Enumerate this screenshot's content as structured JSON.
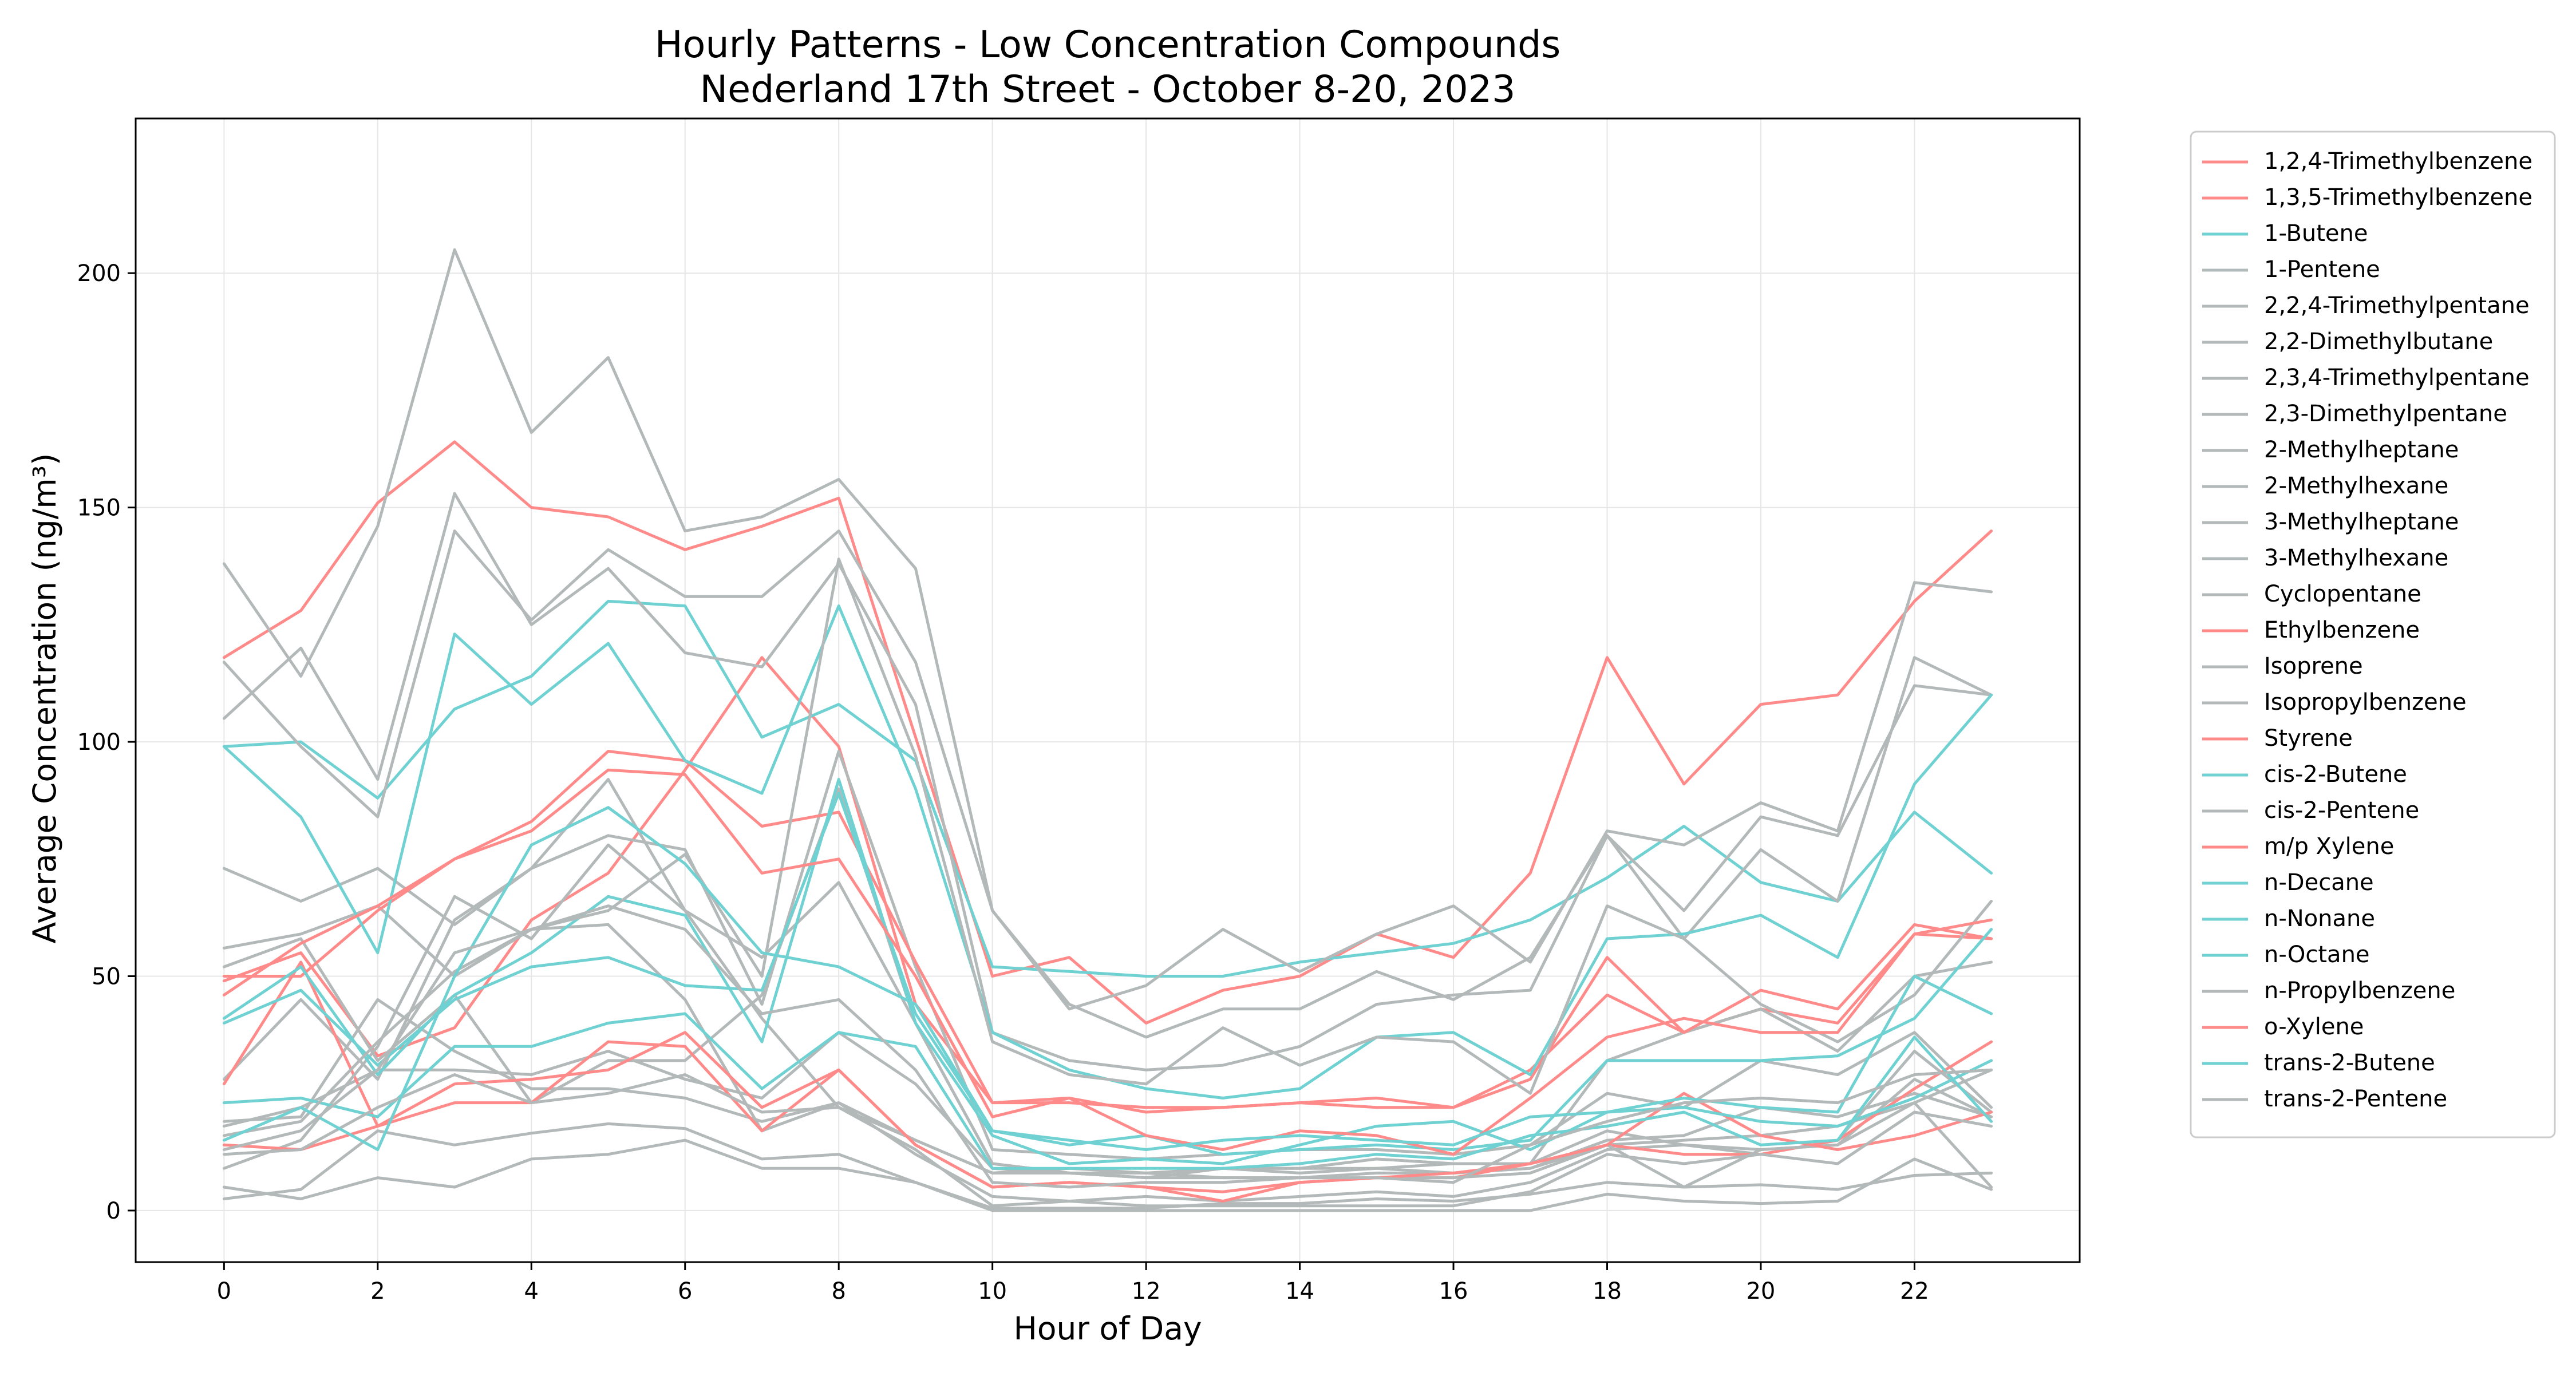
{
  "chart_data": {
    "type": "line",
    "title": "Hourly Patterns - Low Concentration Compounds",
    "subtitle": "Nederland 17th Street - October 8-20, 2023",
    "xlabel": "Hour of Day",
    "ylabel": "Average Concentration (ng/m³)",
    "xlim": [
      -1.15,
      24.15
    ],
    "ylim": [
      -11,
      233
    ],
    "x_ticks": [
      0,
      2,
      4,
      6,
      8,
      10,
      12,
      14,
      16,
      18,
      20,
      22
    ],
    "y_ticks": [
      0,
      50,
      100,
      150,
      200
    ],
    "grid": true,
    "legend_position": "outside-right",
    "x": [
      0,
      1,
      2,
      3,
      4,
      5,
      6,
      7,
      8,
      9,
      10,
      11,
      12,
      13,
      14,
      15,
      16,
      17,
      18,
      19,
      20,
      21,
      22,
      23
    ],
    "series": [
      {
        "name": "1,2,4-Trimethylbenzene",
        "color": "#ff8a8a",
        "values": [
          118,
          128,
          151,
          164,
          150,
          148,
          141,
          146,
          152,
          101,
          50,
          54,
          40,
          47,
          50,
          59,
          54,
          72,
          118,
          91,
          108,
          110,
          130,
          145
        ]
      },
      {
        "name": "1,3,5-Trimethylbenzene",
        "color": "#ff8a8a",
        "values": [
          49,
          55,
          33,
          39,
          62,
          72,
          94,
          118,
          99,
          44,
          23,
          24,
          21,
          22,
          23,
          24,
          22,
          28,
          54,
          38,
          43,
          40,
          59,
          58
        ]
      },
      {
        "name": "1-Butene",
        "color": "#6fd1d1",
        "values": [
          99,
          100,
          88,
          107,
          114,
          130,
          129,
          101,
          108,
          96,
          52,
          51,
          50,
          50,
          53,
          55,
          57,
          62,
          71,
          82,
          70,
          66,
          85,
          72
        ]
      },
      {
        "name": "1-Pentene",
        "color": "#b3b9b9",
        "values": [
          138,
          114,
          146,
          205,
          166,
          182,
          145,
          148,
          156,
          137,
          64,
          43,
          48,
          60,
          51,
          59,
          65,
          53,
          81,
          78,
          87,
          81,
          134,
          132
        ]
      },
      {
        "name": "2,2,4-Trimethylpentane",
        "color": "#b3b9b9",
        "values": [
          73,
          66,
          73,
          61,
          73,
          92,
          64,
          54,
          70,
          40,
          10,
          8,
          7,
          9,
          9,
          9,
          10,
          10,
          32,
          38,
          43,
          34,
          50,
          53
        ]
      },
      {
        "name": "2,2-Dimethylbutane",
        "color": "#b3b9b9",
        "values": [
          105,
          120,
          92,
          153,
          125,
          137,
          119,
          116,
          138,
          108,
          38,
          32,
          30,
          31,
          35,
          44,
          46,
          47,
          80,
          58,
          77,
          66,
          118,
          110
        ]
      },
      {
        "name": "2,3,4-Trimethylpentane",
        "color": "#b3b9b9",
        "values": [
          52,
          58,
          32,
          46,
          23,
          32,
          32,
          46,
          90,
          40,
          10,
          8,
          8,
          9,
          9,
          11,
          10,
          10,
          17,
          14,
          12,
          15,
          34,
          21
        ]
      },
      {
        "name": "2,3-Dimethylpentane",
        "color": "#b3b9b9",
        "values": [
          28,
          45,
          28,
          62,
          73,
          80,
          77,
          44,
          98,
          52,
          13,
          12,
          11,
          12,
          13,
          13,
          12,
          14,
          25,
          22,
          32,
          29,
          38,
          22
        ]
      },
      {
        "name": "2-Methylheptane",
        "color": "#b3b9b9",
        "values": [
          18,
          22,
          30,
          30,
          29,
          34,
          28,
          24,
          38,
          27,
          9,
          8,
          7,
          9,
          8,
          9,
          8,
          9,
          15,
          16,
          22,
          20,
          25,
          20
        ]
      },
      {
        "name": "2-Methylhexane",
        "color": "#b3b9b9",
        "values": [
          56,
          59,
          65,
          50,
          60,
          61,
          45,
          17,
          23,
          12,
          3,
          2,
          3,
          2,
          3,
          4,
          3,
          6,
          13,
          14,
          13,
          14,
          28,
          20
        ]
      },
      {
        "name": "3-Methylheptane",
        "color": "#b3b9b9",
        "values": [
          19,
          20,
          45,
          34,
          26,
          26,
          24,
          19,
          23,
          15,
          8,
          8,
          7,
          7,
          7,
          8,
          8,
          9,
          14,
          15,
          16,
          18,
          23,
          30
        ]
      },
      {
        "name": "3-Methylhexane",
        "color": "#b3b9b9",
        "values": [
          117,
          99,
          84,
          145,
          126,
          141,
          131,
          131,
          145,
          117,
          64,
          44,
          37,
          43,
          43,
          51,
          45,
          54,
          80,
          64,
          84,
          80,
          112,
          110
        ]
      },
      {
        "name": "Cyclopentane",
        "color": "#b3b9b9",
        "values": [
          5,
          2.5,
          7,
          5,
          11,
          12,
          15,
          9,
          9,
          6,
          0.5,
          0.5,
          0.5,
          1.5,
          1.5,
          2.5,
          2,
          3.5,
          6,
          5,
          5.5,
          4.5,
          7.5,
          8
        ]
      },
      {
        "name": "Ethylbenzene",
        "color": "#ff8a8a",
        "values": [
          27,
          53,
          18,
          23,
          23,
          36,
          35,
          17,
          30,
          14,
          5,
          6,
          5,
          4,
          6,
          7,
          7,
          10,
          14,
          12,
          12,
          15,
          26,
          36
        ]
      },
      {
        "name": "Isoprene",
        "color": "#b3b9b9",
        "values": [
          9,
          15,
          35,
          67,
          58,
          78,
          64,
          41,
          22,
          15,
          8,
          9,
          8,
          7,
          7,
          7,
          7,
          8,
          14,
          5,
          13,
          14,
          23,
          5
        ]
      },
      {
        "name": "Isopropylbenzene",
        "color": "#b3b9b9",
        "values": [
          2.5,
          4.5,
          17,
          14,
          16.5,
          18.5,
          17.5,
          11,
          12,
          6,
          0,
          0,
          0,
          0,
          0,
          0,
          0,
          0,
          3.5,
          2,
          1.5,
          2,
          11,
          4.5
        ]
      },
      {
        "name": "Styrene",
        "color": "#ff8a8a",
        "values": [
          14,
          13,
          18,
          27,
          28,
          30,
          38,
          22,
          30,
          14,
          5,
          6,
          5,
          2,
          6,
          7,
          8,
          10,
          14,
          25,
          16,
          13,
          16,
          21
        ]
      },
      {
        "name": "cis-2-Butene",
        "color": "#6fd1d1",
        "values": [
          23,
          24,
          20,
          35,
          35,
          40,
          42,
          26,
          38,
          35,
          9,
          9,
          9,
          9,
          10,
          12,
          11,
          16,
          18,
          21,
          14,
          15,
          37,
          19
        ]
      },
      {
        "name": "cis-2-Pentene",
        "color": "#b3b9b9",
        "values": [
          12,
          13,
          22,
          29,
          23,
          25,
          29,
          21,
          22,
          13,
          1,
          2,
          1,
          1,
          1,
          1,
          1,
          4,
          12,
          10,
          12,
          10,
          21,
          18
        ]
      },
      {
        "name": "m/p Xylene",
        "color": "#ff8a8a",
        "values": [
          50,
          50,
          64,
          75,
          83,
          98,
          96,
          82,
          85,
          53,
          23,
          23,
          22,
          22,
          23,
          22,
          22,
          30,
          46,
          38,
          47,
          43,
          61,
          58
        ]
      },
      {
        "name": "n-Decane",
        "color": "#6fd1d1",
        "values": [
          99,
          84,
          55,
          123,
          108,
          121,
          96,
          89,
          129,
          90,
          38,
          30,
          26,
          24,
          26,
          37,
          38,
          29,
          58,
          59,
          63,
          54,
          91,
          110
        ]
      },
      {
        "name": "n-Nonane",
        "color": "#6fd1d1",
        "values": [
          41,
          52,
          29,
          46,
          55,
          67,
          63,
          36,
          92,
          40,
          16,
          10,
          11,
          10,
          14,
          18,
          19,
          13,
          21,
          22,
          19,
          18,
          24,
          32
        ]
      },
      {
        "name": "n-Octane",
        "color": "#6fd1d1",
        "values": [
          40,
          47,
          31,
          45,
          52,
          54,
          48,
          47,
          89,
          42,
          17,
          14,
          16,
          12,
          13,
          14,
          13,
          15,
          32,
          32,
          32,
          33,
          41,
          60
        ]
      },
      {
        "name": "n-Propylbenzene",
        "color": "#b3b9b9",
        "values": [
          16,
          19,
          36,
          51,
          60,
          64,
          76,
          50,
          139,
          97,
          36,
          29,
          27,
          39,
          31,
          37,
          36,
          25,
          65,
          58,
          44,
          36,
          46,
          66
        ]
      },
      {
        "name": "o-Xylene",
        "color": "#ff8a8a",
        "values": [
          46,
          57,
          65,
          75,
          81,
          94,
          93,
          72,
          75,
          50,
          20,
          24,
          16,
          13,
          17,
          16,
          12,
          24,
          37,
          41,
          38,
          38,
          59,
          62
        ]
      },
      {
        "name": "trans-2-Butene",
        "color": "#6fd1d1",
        "values": [
          15,
          22,
          13,
          50,
          78,
          86,
          74,
          55,
          52,
          44,
          17,
          15,
          13,
          15,
          16,
          15,
          14,
          20,
          21,
          24,
          22,
          21,
          50,
          42
        ]
      },
      {
        "name": "trans-2-Pentene",
        "color": "#b3b9b9",
        "values": [
          13,
          17,
          30,
          55,
          60,
          65,
          60,
          42,
          45,
          30,
          6,
          5,
          6,
          6,
          7,
          7,
          6,
          14,
          19,
          23,
          24,
          23,
          29,
          30
        ]
      }
    ]
  }
}
